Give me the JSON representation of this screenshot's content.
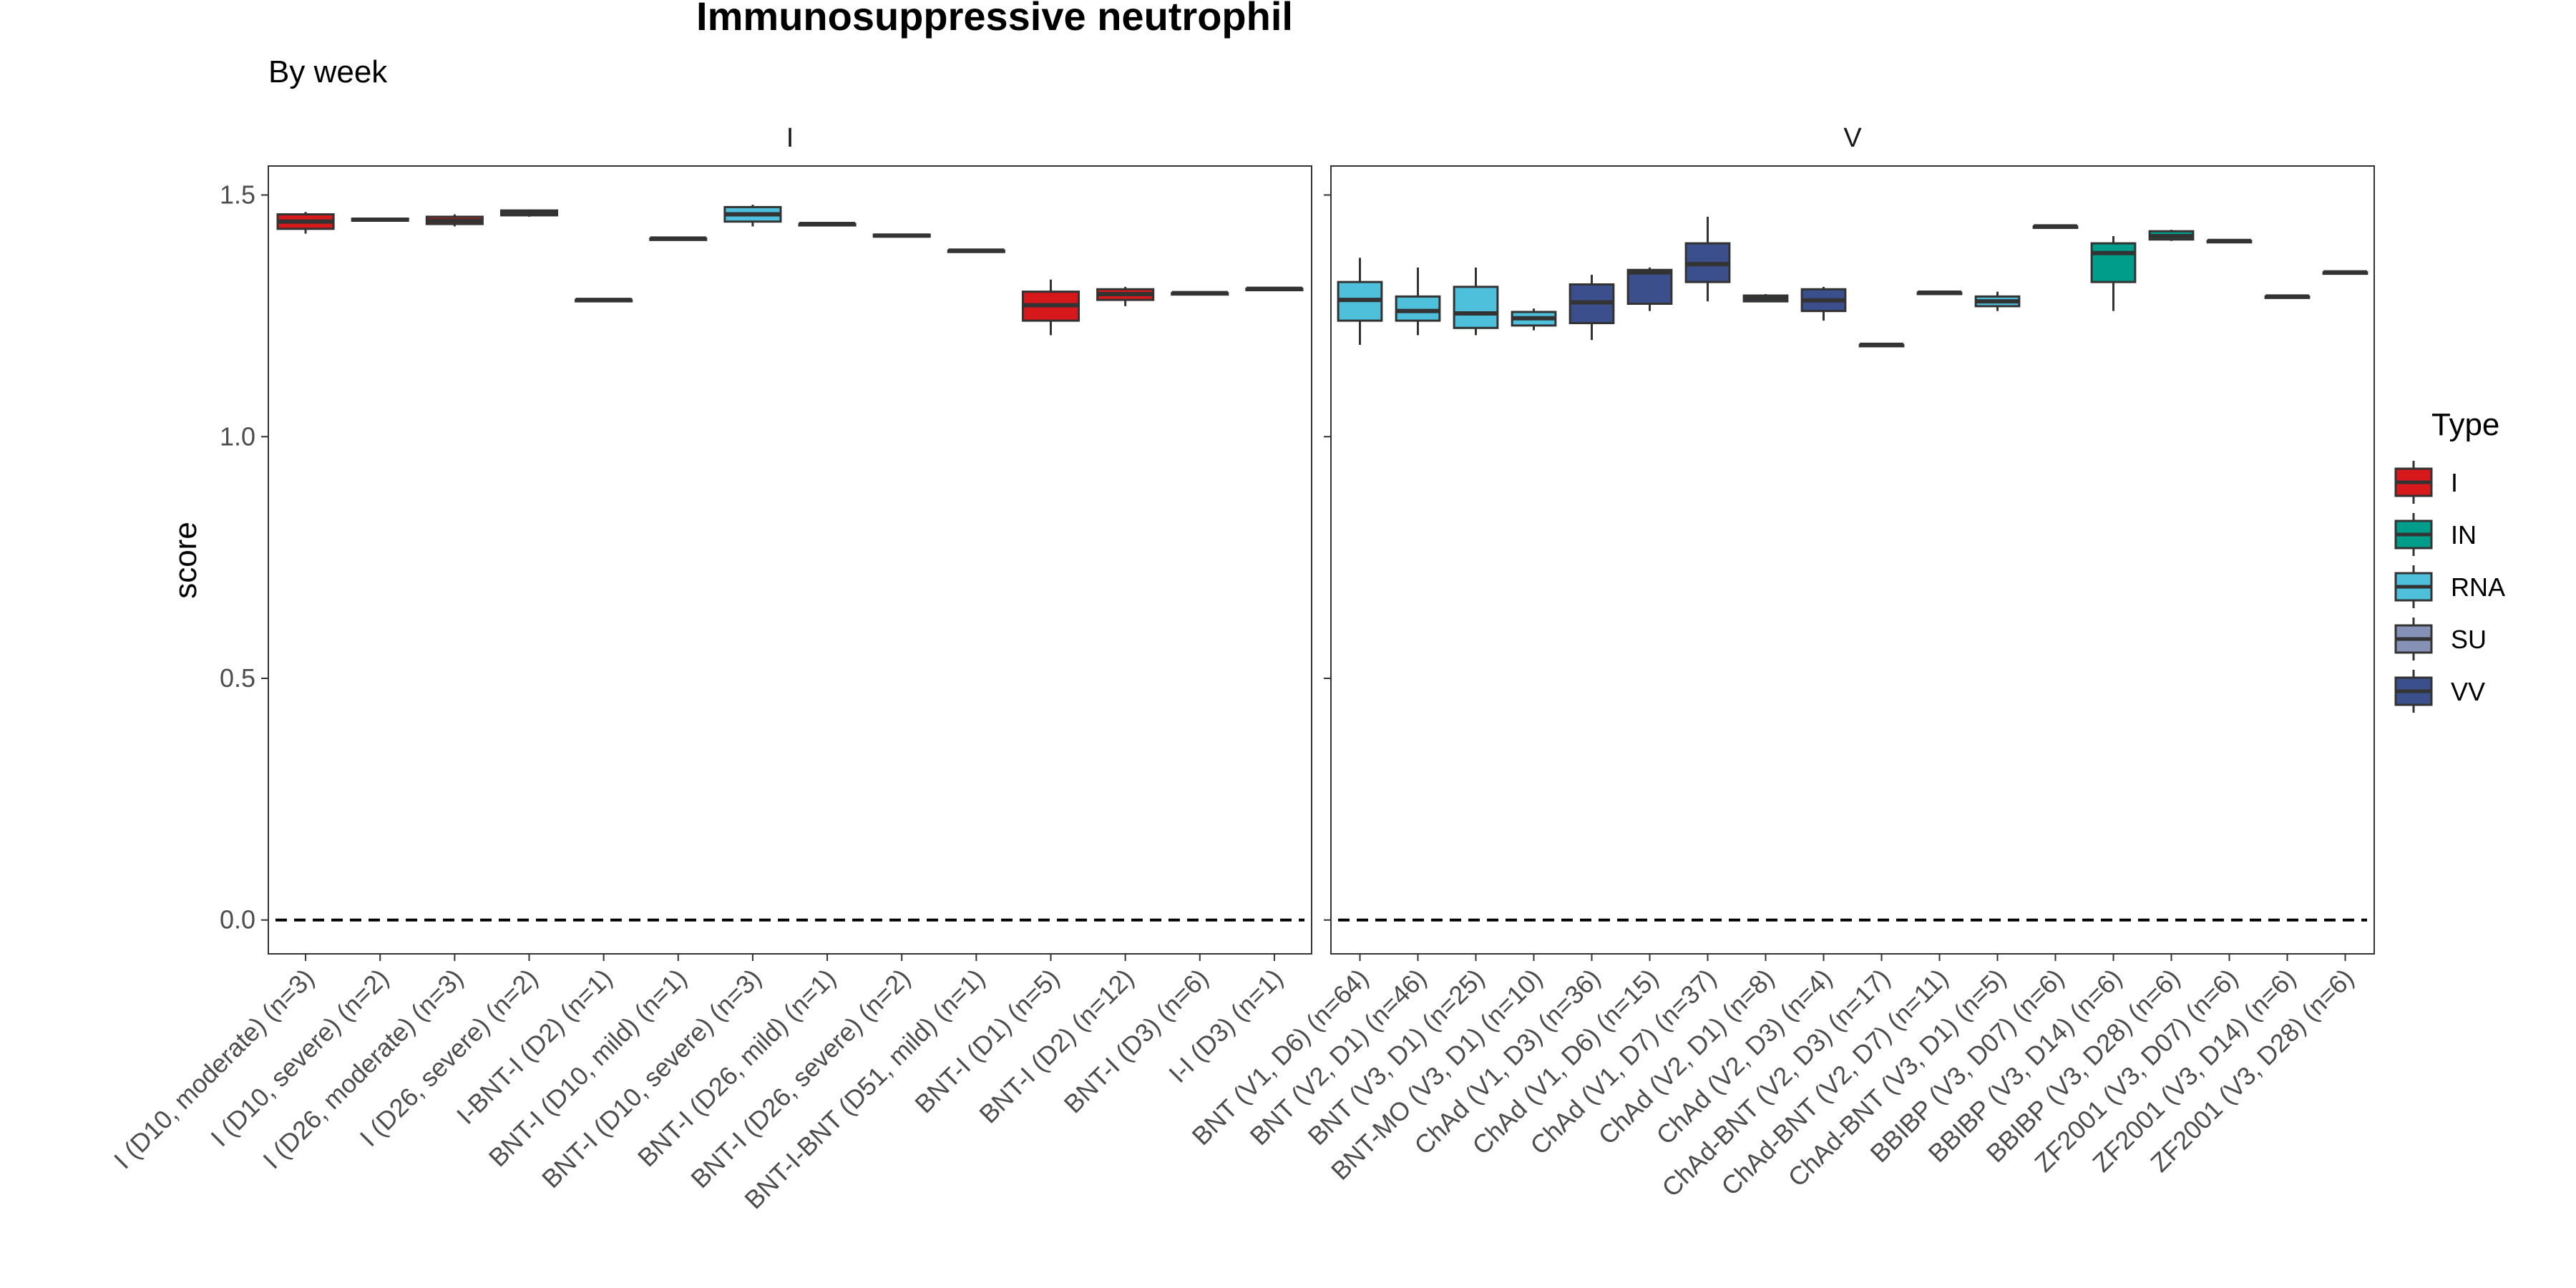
{
  "chart_data": {
    "type": "box",
    "title": "Immunosuppressive neutrophil",
    "subtitle": "By week",
    "ylabel": "score",
    "xlabel": "",
    "ylim": [
      -0.07,
      1.56
    ],
    "yticks": [
      0.0,
      0.5,
      1.0,
      1.5
    ],
    "reference_line": 0.0,
    "grid": false,
    "legend": {
      "title": "Type",
      "position": "right",
      "items": [
        {
          "name": "I",
          "color": "#D7191C"
        },
        {
          "name": "IN",
          "color": "#009E8A"
        },
        {
          "name": "RNA",
          "color": "#4FC0DC"
        },
        {
          "name": "SU",
          "color": "#8591B5"
        },
        {
          "name": "VV",
          "color": "#3B4F8C"
        }
      ]
    },
    "panels": [
      {
        "label": "I",
        "groups": [
          {
            "label": "I (D10, moderate) (n=3)",
            "type": "I",
            "min": 1.42,
            "q1": 1.43,
            "median": 1.445,
            "q3": 1.46,
            "max": 1.465
          },
          {
            "label": "I (D10, severe) (n=2)",
            "type": "I",
            "min": 1.446,
            "q1": 1.447,
            "median": 1.449,
            "q3": 1.451,
            "max": 1.452
          },
          {
            "label": "I (D26, moderate) (n=3)",
            "type": "I",
            "min": 1.435,
            "q1": 1.44,
            "median": 1.447,
            "q3": 1.455,
            "max": 1.46
          },
          {
            "label": "I (D26, severe) (n=2)",
            "type": "I",
            "min": 1.455,
            "q1": 1.458,
            "median": 1.462,
            "q3": 1.468,
            "max": 1.47
          },
          {
            "label": "I-BNT-I (D2) (n=1)",
            "type": "I",
            "min": 1.283,
            "q1": 1.283,
            "median": 1.283,
            "q3": 1.283,
            "max": 1.283
          },
          {
            "label": "BNT-I (D10, mild) (n=1)",
            "type": "RNA",
            "min": 1.41,
            "q1": 1.41,
            "median": 1.41,
            "q3": 1.41,
            "max": 1.41
          },
          {
            "label": "BNT-I (D10, severe) (n=3)",
            "type": "RNA",
            "min": 1.435,
            "q1": 1.445,
            "median": 1.46,
            "q3": 1.475,
            "max": 1.48
          },
          {
            "label": "BNT-I (D26, mild) (n=1)",
            "type": "RNA",
            "min": 1.44,
            "q1": 1.44,
            "median": 1.44,
            "q3": 1.44,
            "max": 1.44
          },
          {
            "label": "BNT-I (D26, severe) (n=2)",
            "type": "RNA",
            "min": 1.413,
            "q1": 1.414,
            "median": 1.416,
            "q3": 1.418,
            "max": 1.419
          },
          {
            "label": "BNT-I-BNT (D51, mild) (n=1)",
            "type": "RNA",
            "min": 1.385,
            "q1": 1.385,
            "median": 1.385,
            "q3": 1.385,
            "max": 1.385
          },
          {
            "label": "BNT-I (D1) (n=5)",
            "type": "I",
            "min": 1.21,
            "q1": 1.24,
            "median": 1.272,
            "q3": 1.3,
            "max": 1.325
          },
          {
            "label": "BNT-I (D2) (n=12)",
            "type": "I",
            "min": 1.27,
            "q1": 1.283,
            "median": 1.295,
            "q3": 1.305,
            "max": 1.31
          },
          {
            "label": "BNT-I (D3) (n=6)",
            "type": "I",
            "min": 1.297,
            "q1": 1.297,
            "median": 1.297,
            "q3": 1.297,
            "max": 1.297
          },
          {
            "label": "I-I (D3) (n=1)",
            "type": "I",
            "min": 1.306,
            "q1": 1.306,
            "median": 1.306,
            "q3": 1.306,
            "max": 1.306
          }
        ]
      },
      {
        "label": "V",
        "groups": [
          {
            "label": "BNT (V1, D6) (n=64)",
            "type": "RNA",
            "min": 1.19,
            "q1": 1.24,
            "median": 1.283,
            "q3": 1.32,
            "max": 1.37
          },
          {
            "label": "BNT (V2, D1) (n=46)",
            "type": "RNA",
            "min": 1.21,
            "q1": 1.24,
            "median": 1.26,
            "q3": 1.29,
            "max": 1.35
          },
          {
            "label": "BNT (V3, D1) (n=25)",
            "type": "RNA",
            "min": 1.21,
            "q1": 1.225,
            "median": 1.255,
            "q3": 1.31,
            "max": 1.35
          },
          {
            "label": "BNT-MO (V3, D1) (n=10)",
            "type": "RNA",
            "min": 1.22,
            "q1": 1.23,
            "median": 1.245,
            "q3": 1.258,
            "max": 1.265
          },
          {
            "label": "ChAd (V1, D3) (n=36)",
            "type": "VV",
            "min": 1.2,
            "q1": 1.235,
            "median": 1.278,
            "q3": 1.315,
            "max": 1.335
          },
          {
            "label": "ChAd (V1, D6) (n=15)",
            "type": "VV",
            "min": 1.26,
            "q1": 1.275,
            "median": 1.34,
            "q3": 1.345,
            "max": 1.35
          },
          {
            "label": "ChAd (V1, D7) (n=37)",
            "type": "VV",
            "min": 1.28,
            "q1": 1.32,
            "median": 1.357,
            "q3": 1.4,
            "max": 1.455
          },
          {
            "label": "ChAd (V2, D1) (n=8)",
            "type": "VV",
            "min": 1.278,
            "q1": 1.28,
            "median": 1.287,
            "q3": 1.292,
            "max": 1.295
          },
          {
            "label": "ChAd (V2, D3) (n=4)",
            "type": "VV",
            "min": 1.24,
            "q1": 1.26,
            "median": 1.282,
            "q3": 1.305,
            "max": 1.31
          },
          {
            "label": "ChAd-BNT (V2, D3) (n=17)",
            "type": "RNA",
            "min": 1.19,
            "q1": 1.19,
            "median": 1.19,
            "q3": 1.19,
            "max": 1.19
          },
          {
            "label": "ChAd-BNT (V2, D7) (n=11)",
            "type": "RNA",
            "min": 1.298,
            "q1": 1.298,
            "median": 1.298,
            "q3": 1.298,
            "max": 1.298
          },
          {
            "label": "ChAd-BNT (V3, D1) (n=5)",
            "type": "RNA",
            "min": 1.26,
            "q1": 1.27,
            "median": 1.28,
            "q3": 1.29,
            "max": 1.3
          },
          {
            "label": "BBIBP (V3, D07) (n=6)",
            "type": "IN",
            "min": 1.435,
            "q1": 1.435,
            "median": 1.435,
            "q3": 1.435,
            "max": 1.435
          },
          {
            "label": "BBIBP (V3, D14) (n=6)",
            "type": "IN",
            "min": 1.26,
            "q1": 1.32,
            "median": 1.38,
            "q3": 1.4,
            "max": 1.415
          },
          {
            "label": "BBIBP (V3, D28) (n=6)",
            "type": "IN",
            "min": 1.405,
            "q1": 1.408,
            "median": 1.415,
            "q3": 1.425,
            "max": 1.428
          },
          {
            "label": "ZF2001 (V3, D07) (n=6)",
            "type": "SU",
            "min": 1.405,
            "q1": 1.405,
            "median": 1.405,
            "q3": 1.405,
            "max": 1.405
          },
          {
            "label": "ZF2001 (V3, D14) (n=6)",
            "type": "SU",
            "min": 1.29,
            "q1": 1.29,
            "median": 1.29,
            "q3": 1.29,
            "max": 1.29
          },
          {
            "label": "ZF2001 (V3, D28) (n=6)",
            "type": "SU",
            "min": 1.34,
            "q1": 1.34,
            "median": 1.34,
            "q3": 1.34,
            "max": 1.34
          }
        ]
      }
    ]
  }
}
